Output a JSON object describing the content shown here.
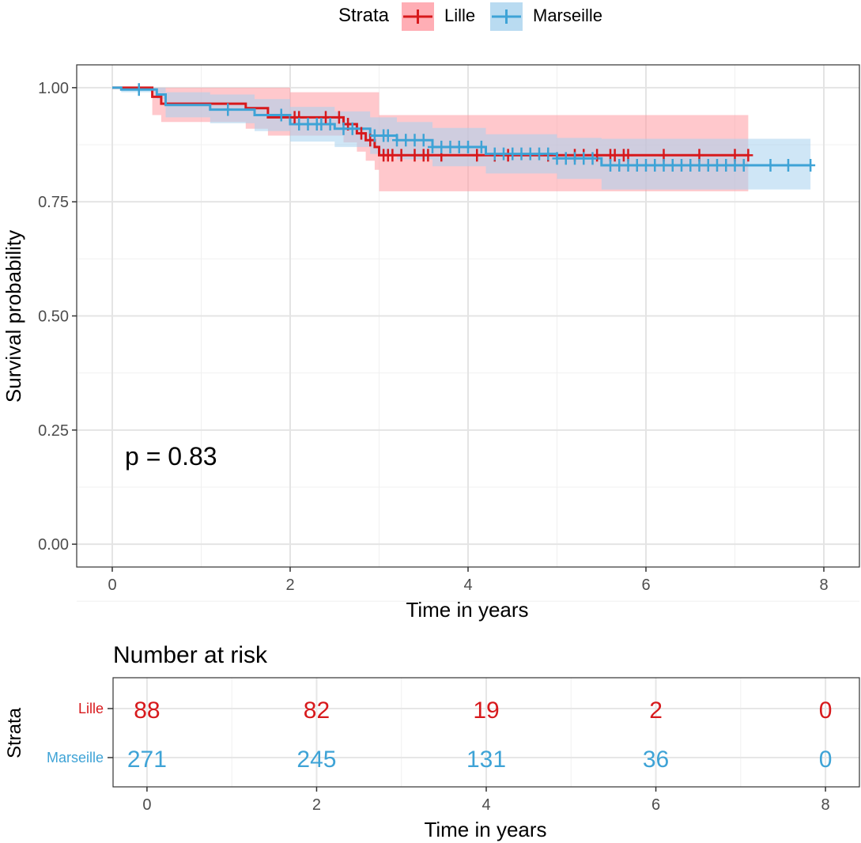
{
  "chart_data": [
    {
      "type": "line",
      "subtype": "kaplan-meier",
      "legend": {
        "title": "Strata",
        "placement": "top-center"
      },
      "xlabel": "Time in years",
      "ylabel": "Survival probability",
      "xlim": [
        -0.4,
        8.4
      ],
      "ylim": [
        -0.05,
        1.05
      ],
      "x_ticks": [
        "0",
        "2",
        "4",
        "6",
        "8"
      ],
      "y_ticks": [
        "0.00",
        "0.25",
        "0.50",
        "0.75",
        "1.00"
      ],
      "grid": true,
      "annotation": "p = 0.83",
      "series": [
        {
          "name": "Lille",
          "color": "#d7191c",
          "ci_color": "#ff9aa2",
          "steps": [
            [
              0,
              1.0
            ],
            [
              0.45,
              0.98
            ],
            [
              0.55,
              0.965
            ],
            [
              1.5,
              0.955
            ],
            [
              1.75,
              0.935
            ],
            [
              2.6,
              0.92
            ],
            [
              2.75,
              0.9
            ],
            [
              2.85,
              0.885
            ],
            [
              2.95,
              0.87
            ],
            [
              3.0,
              0.852
            ],
            [
              7.15,
              0.852
            ]
          ],
          "ci_upper": [
            [
              0.45,
              1.0
            ],
            [
              1.6,
              1.0
            ],
            [
              2.0,
              0.99
            ],
            [
              3.0,
              0.94
            ],
            [
              7.15,
              0.94
            ]
          ],
          "ci_lower": [
            [
              0.45,
              0.94
            ],
            [
              0.55,
              0.925
            ],
            [
              1.5,
              0.91
            ],
            [
              1.75,
              0.895
            ],
            [
              2.6,
              0.88
            ],
            [
              2.75,
              0.86
            ],
            [
              2.85,
              0.84
            ],
            [
              2.95,
              0.82
            ],
            [
              3.0,
              0.773
            ],
            [
              7.15,
              0.773
            ]
          ],
          "censor_times": [
            2.05,
            2.1,
            2.4,
            2.55,
            2.65,
            2.8,
            2.9,
            3.05,
            3.1,
            3.15,
            3.25,
            3.4,
            3.5,
            3.55,
            3.7,
            4.1,
            4.3,
            4.45,
            4.9,
            5.2,
            5.3,
            5.45,
            5.6,
            5.65,
            5.75,
            5.8,
            6.2,
            6.6,
            7.0,
            7.15
          ]
        },
        {
          "name": "Marseille",
          "color": "#3ea3d6",
          "ci_color": "#a8d2ee",
          "steps": [
            [
              0,
              1.0
            ],
            [
              0.1,
              0.996
            ],
            [
              0.5,
              0.985
            ],
            [
              0.6,
              0.962
            ],
            [
              1.1,
              0.952
            ],
            [
              1.6,
              0.94
            ],
            [
              2.0,
              0.92
            ],
            [
              2.5,
              0.91
            ],
            [
              2.9,
              0.895
            ],
            [
              3.2,
              0.885
            ],
            [
              3.6,
              0.87
            ],
            [
              4.2,
              0.855
            ],
            [
              5.0,
              0.845
            ],
            [
              5.5,
              0.83
            ],
            [
              7.85,
              0.83
            ]
          ],
          "ci_upper": [
            [
              0.1,
              1.0
            ],
            [
              0.6,
              0.99
            ],
            [
              1.1,
              0.985
            ],
            [
              1.6,
              0.975
            ],
            [
              2.0,
              0.958
            ],
            [
              2.5,
              0.948
            ],
            [
              2.9,
              0.935
            ],
            [
              3.2,
              0.925
            ],
            [
              3.6,
              0.912
            ],
            [
              4.2,
              0.898
            ],
            [
              5.0,
              0.89
            ],
            [
              5.5,
              0.888
            ],
            [
              7.85,
              0.888
            ]
          ],
          "ci_lower": [
            [
              0.1,
              0.99
            ],
            [
              0.5,
              0.975
            ],
            [
              0.6,
              0.935
            ],
            [
              1.1,
              0.922
            ],
            [
              1.6,
              0.905
            ],
            [
              2.0,
              0.882
            ],
            [
              2.5,
              0.87
            ],
            [
              2.9,
              0.855
            ],
            [
              3.2,
              0.843
            ],
            [
              3.6,
              0.828
            ],
            [
              4.2,
              0.812
            ],
            [
              5.0,
              0.8
            ],
            [
              5.5,
              0.777
            ],
            [
              7.85,
              0.777
            ]
          ],
          "censor_times": [
            0.3,
            1.3,
            1.9,
            2.1,
            2.2,
            2.3,
            2.35,
            2.45,
            2.6,
            2.7,
            2.95,
            3.05,
            3.1,
            3.2,
            3.3,
            3.4,
            3.5,
            3.6,
            3.7,
            3.8,
            3.9,
            4.0,
            4.15,
            4.3,
            4.4,
            4.5,
            4.6,
            4.7,
            4.8,
            4.9,
            5.0,
            5.1,
            5.2,
            5.3,
            5.4,
            5.6,
            5.7,
            5.8,
            5.9,
            6.0,
            6.1,
            6.2,
            6.3,
            6.4,
            6.5,
            6.6,
            6.7,
            6.8,
            6.9,
            7.0,
            7.1,
            7.4,
            7.6,
            7.85
          ]
        }
      ]
    },
    {
      "type": "table",
      "title": "Number at risk",
      "ylabel": "Strata",
      "xlabel": "Time in years",
      "xlim": [
        -0.4,
        8.4
      ],
      "x_ticks": [
        "0",
        "2",
        "4",
        "6",
        "8"
      ],
      "times": [
        0,
        2,
        4,
        6,
        8
      ],
      "rows": [
        {
          "name": "Lille",
          "color": "#d7191c",
          "values": [
            "88",
            "82",
            "19",
            "2",
            "0"
          ]
        },
        {
          "name": "Marseille",
          "color": "#3ea3d6",
          "values": [
            "271",
            "245",
            "131",
            "36",
            "0"
          ]
        }
      ]
    }
  ]
}
